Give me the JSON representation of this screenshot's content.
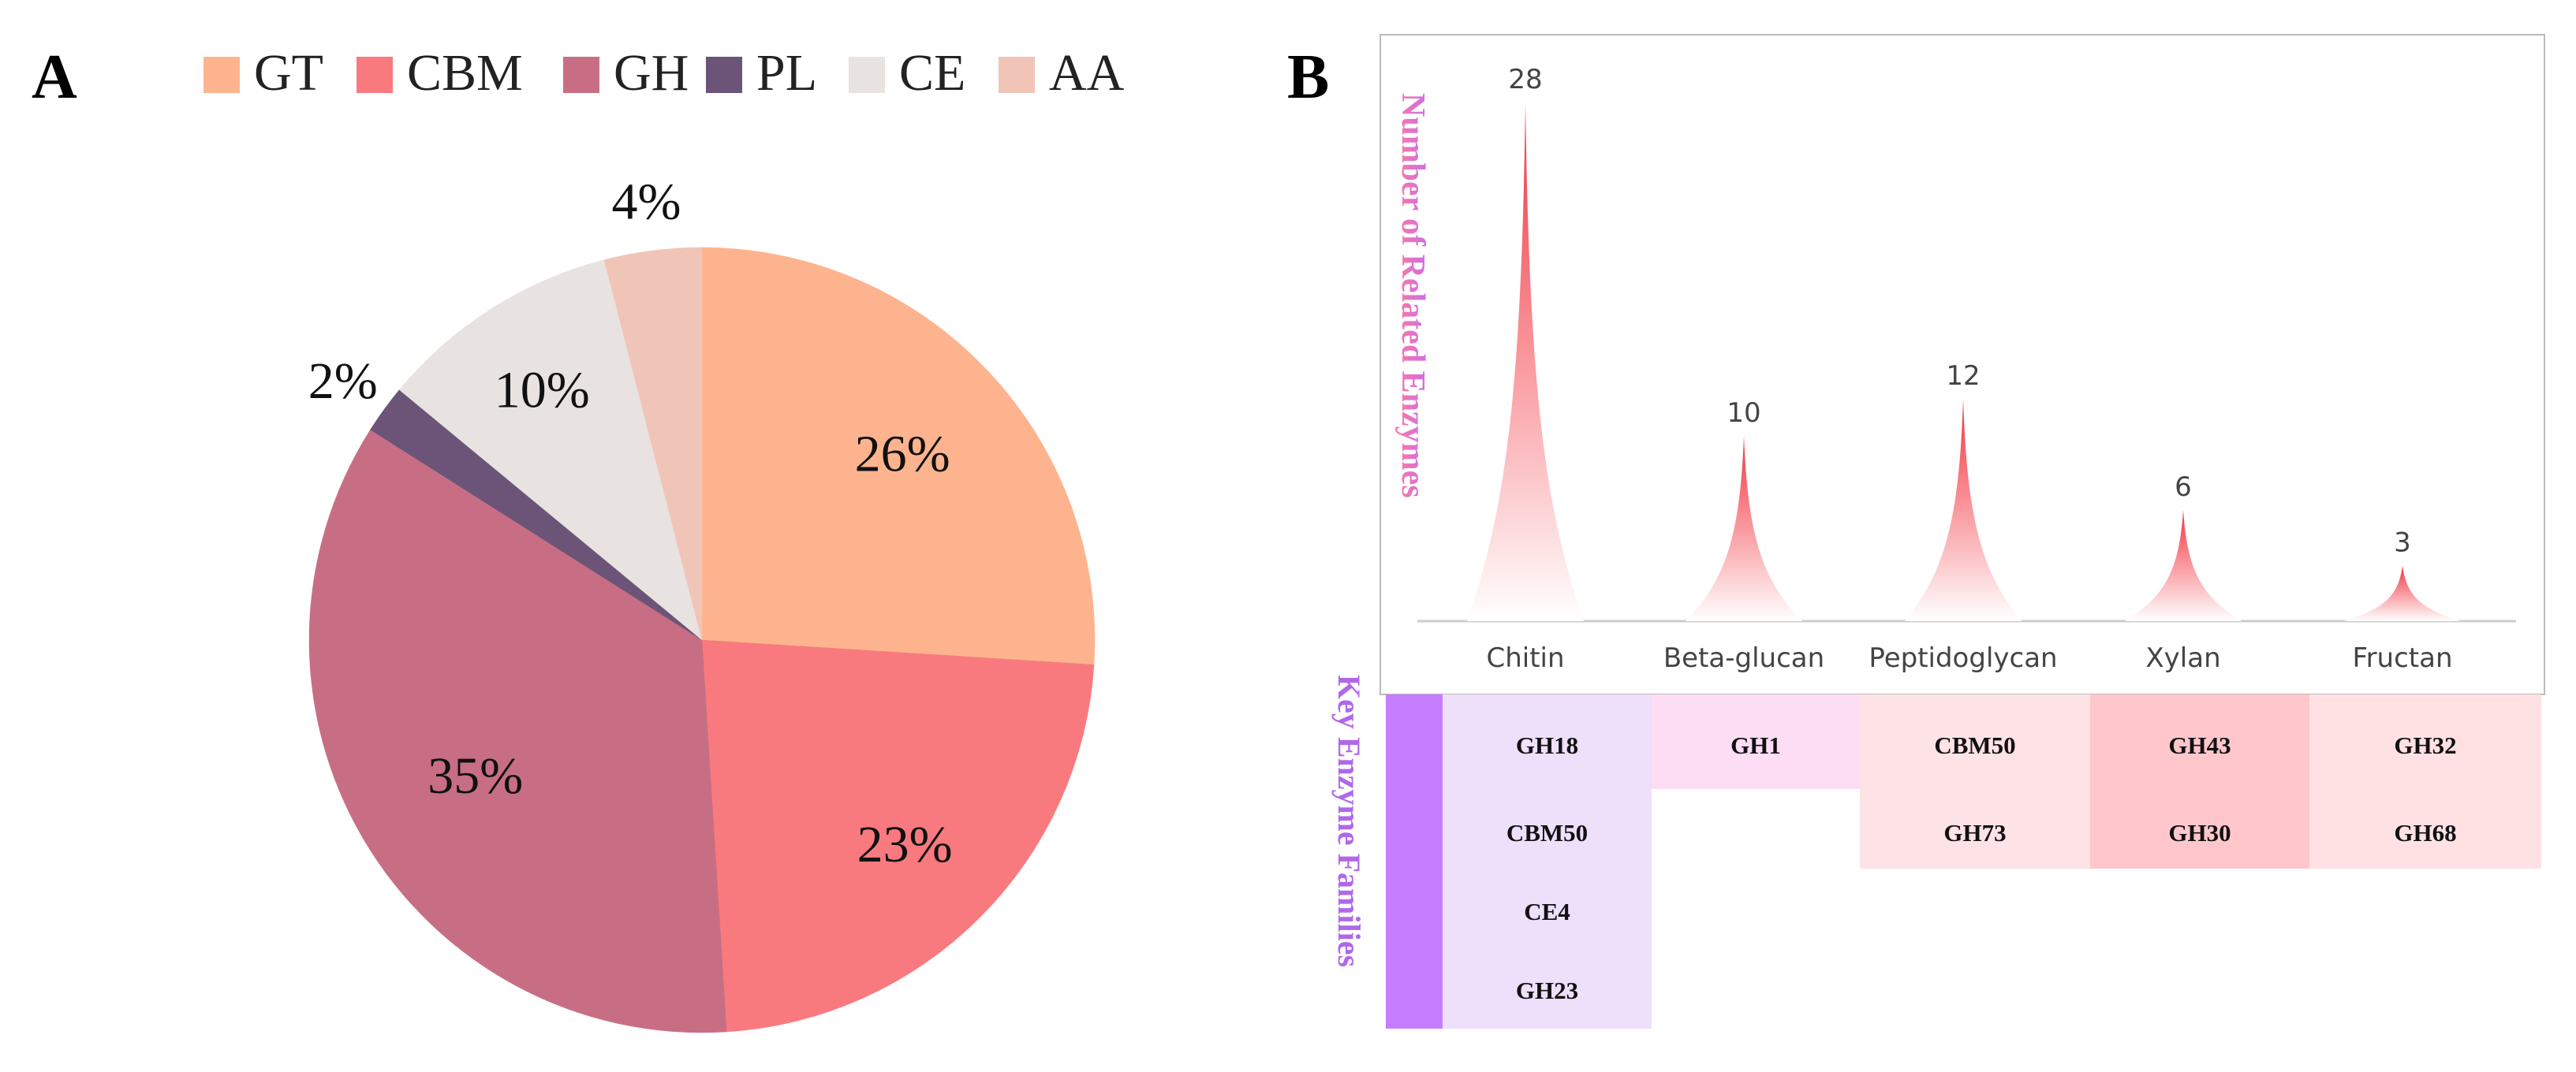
{
  "chart_data": [
    {
      "panel": "A",
      "type": "pie",
      "title": "",
      "legend_position": "top",
      "slices": [
        {
          "label": "GT",
          "value": 26,
          "display": "26%",
          "color": "#FDB48E"
        },
        {
          "label": "CBM",
          "value": 23,
          "display": "23%",
          "color": "#F97A7E"
        },
        {
          "label": "GH",
          "value": 35,
          "display": "35%",
          "color": "#C86E84"
        },
        {
          "label": "PL",
          "value": 2,
          "display": "2%",
          "color": "#6C5478"
        },
        {
          "label": "CE",
          "value": 10,
          "display": "10%",
          "color": "#E8E2E0"
        },
        {
          "label": "AA",
          "value": 4,
          "display": "4%",
          "color": "#F1C4B8"
        }
      ]
    },
    {
      "panel": "B",
      "type": "bar",
      "bar_shape": "spike",
      "ylabel": "Number of Related Enzymes",
      "xlabel": "",
      "categories": [
        "Chitin",
        "Beta-glucan",
        "Peptidoglycan",
        "Xylan",
        "Fructan"
      ],
      "values": [
        28,
        10,
        12,
        6,
        3
      ],
      "ylim": [
        0,
        28
      ],
      "grid": false,
      "table_label": "Key Enzyme Families",
      "families": [
        [
          "GH18",
          "CBM50",
          "CE4",
          "GH23"
        ],
        [
          "GH1"
        ],
        [
          "CBM50",
          "GH73"
        ],
        [
          "GH43",
          "GH30"
        ],
        [
          "GH32",
          "GH68"
        ]
      ]
    }
  ],
  "panel_labels": {
    "a": "A",
    "b": "B"
  },
  "colors": {
    "spike_top": "#F2343F",
    "spike_bottom": "#FFFFFF",
    "ylabel_top": "#C86CF0",
    "ylabel_bottom": "#FF7A9E",
    "table_label": "#B068EA",
    "table_band": "#C77DFF",
    "cell_colors": [
      "#EEDFFA",
      "#FCDDF3",
      "#FDE2E6",
      "#FFC7CC",
      "#FFE1E3"
    ],
    "axis": "#CCCCCC",
    "frame": "#BBBBBB"
  }
}
